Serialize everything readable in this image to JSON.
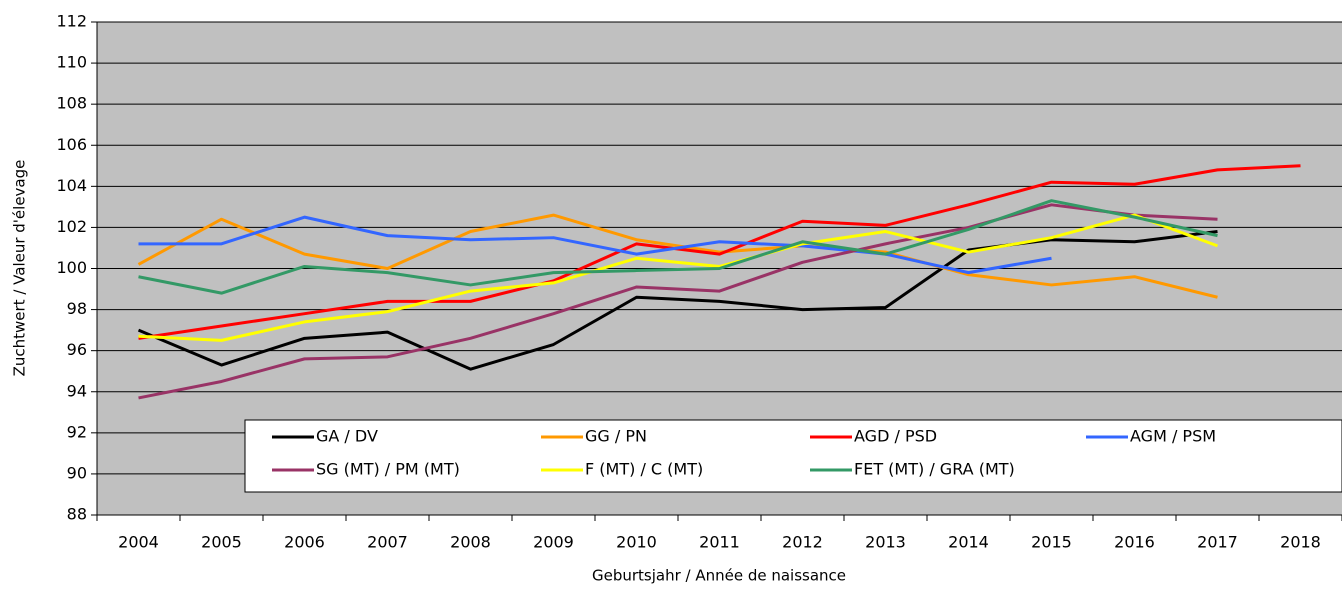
{
  "chart_data": {
    "type": "line",
    "x_label": "Geburtsjahr / Année de naissance",
    "y_label": "Zuchtwert / Valeur d'élevage",
    "categories": [
      "2004",
      "2005",
      "2006",
      "2007",
      "2008",
      "2009",
      "2010",
      "2011",
      "2012",
      "2013",
      "2014",
      "2015",
      "2016",
      "2017",
      "2018"
    ],
    "series": [
      {
        "name": "GA / DV",
        "color": "#000000",
        "values": [
          97.0,
          95.3,
          96.6,
          96.9,
          95.1,
          96.3,
          98.6,
          98.4,
          98.0,
          98.1,
          100.9,
          101.4,
          101.3,
          101.8,
          null
        ]
      },
      {
        "name": "GG / PN",
        "color": "#ff9900",
        "values": [
          100.2,
          102.4,
          100.7,
          100.0,
          101.8,
          102.6,
          101.4,
          100.8,
          101.1,
          100.8,
          99.7,
          99.2,
          99.6,
          98.6,
          null
        ]
      },
      {
        "name": "AGD / PSD",
        "color": "#ff0000",
        "values": [
          96.6,
          97.2,
          97.8,
          98.4,
          98.4,
          99.4,
          101.2,
          100.7,
          102.3,
          102.1,
          103.1,
          104.2,
          104.1,
          104.8,
          105.0
        ]
      },
      {
        "name": "AGM / PSM",
        "color": "#3366ff",
        "values": [
          101.2,
          101.2,
          102.5,
          101.6,
          101.4,
          101.5,
          100.7,
          101.3,
          101.1,
          100.7,
          99.8,
          100.5,
          null,
          null,
          null
        ]
      },
      {
        "name": "SG (MT) / PM (MT)",
        "color": "#993366",
        "values": [
          93.7,
          94.5,
          95.6,
          95.7,
          96.6,
          97.8,
          99.1,
          98.9,
          100.3,
          101.2,
          102.0,
          103.1,
          102.6,
          102.4,
          null
        ]
      },
      {
        "name": "F (MT) / C (MT)",
        "color": "#ffff00",
        "values": [
          96.7,
          96.5,
          97.4,
          97.9,
          98.9,
          99.3,
          100.5,
          100.1,
          101.2,
          101.8,
          100.8,
          101.5,
          102.6,
          101.1,
          null
        ]
      },
      {
        "name": "FET (MT) / GRA (MT)",
        "color": "#339966",
        "values": [
          99.6,
          98.8,
          100.1,
          99.8,
          99.2,
          99.8,
          99.9,
          100.0,
          101.3,
          100.7,
          101.9,
          103.3,
          102.5,
          101.6,
          null
        ]
      }
    ],
    "ylim": [
      88,
      112
    ],
    "yticks": [
      88,
      90,
      92,
      94,
      96,
      98,
      100,
      102,
      104,
      106,
      108,
      110,
      112
    ],
    "grid": true,
    "legend": "bottom",
    "background": "#c0c0c0"
  }
}
